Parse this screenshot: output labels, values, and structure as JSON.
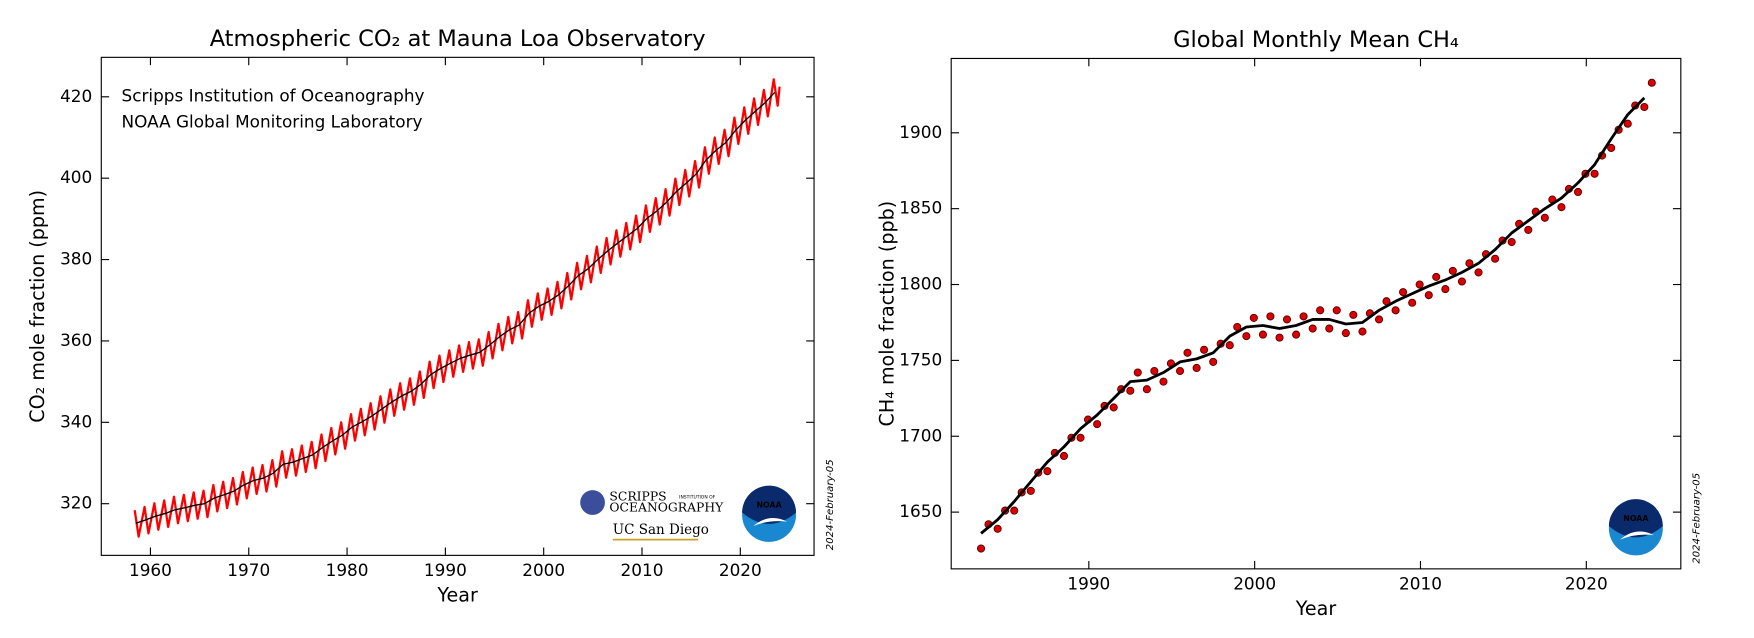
{
  "chart_data": [
    {
      "type": "line",
      "title": "Atmospheric CO₂ at Mauna Loa Observatory",
      "x_label": "Year",
      "y_label": "CO₂ mole fraction (ppm)",
      "annotations": [
        "Scripps Institution of Oceanography",
        "NOAA Global Monitoring Laboratory"
      ],
      "date_stamp": "2024-February-05",
      "logos": [
        "SCRIPPS",
        "INSTITUTION OF",
        "OCEANOGRAPHY",
        "UC San Diego",
        "NOAA"
      ],
      "xlim": [
        1955,
        2027.5
      ],
      "ylim": [
        307.3,
        429.7
      ],
      "xticks": [
        1960,
        1970,
        1980,
        1990,
        2000,
        2010,
        2020
      ],
      "yticks": [
        320,
        340,
        360,
        380,
        400,
        420
      ],
      "series": [
        {
          "color": "#ff0000",
          "line_width": 2,
          "x": [
            1958.4,
            1958.8,
            1959.4,
            1959.8,
            1960.4,
            1960.8,
            1961.4,
            1961.8,
            1962.4,
            1962.8,
            1963.4,
            1963.8,
            1964.4,
            1964.8,
            1965.4,
            1965.8,
            1966.4,
            1966.8,
            1967.4,
            1967.8,
            1968.4,
            1968.8,
            1969.4,
            1969.8,
            1970.4,
            1970.8,
            1971.4,
            1971.8,
            1972.4,
            1972.8,
            1973.4,
            1973.8,
            1974.4,
            1974.8,
            1975.4,
            1975.8,
            1976.4,
            1976.8,
            1977.4,
            1977.8,
            1978.4,
            1978.8,
            1979.4,
            1979.8,
            1980.4,
            1980.8,
            1981.4,
            1981.8,
            1982.4,
            1982.8,
            1983.4,
            1983.8,
            1984.4,
            1984.8,
            1985.4,
            1985.8,
            1986.4,
            1986.8,
            1987.4,
            1987.8,
            1988.4,
            1988.8,
            1989.4,
            1989.8,
            1990.4,
            1990.8,
            1991.4,
            1991.8,
            1992.4,
            1992.8,
            1993.4,
            1993.8,
            1994.4,
            1994.8,
            1995.4,
            1995.8,
            1996.4,
            1996.8,
            1997.4,
            1997.8,
            1998.4,
            1998.8,
            1999.4,
            1999.8,
            2000.4,
            2000.8,
            2001.4,
            2001.8,
            2002.4,
            2002.8,
            2003.4,
            2003.8,
            2004.4,
            2004.8,
            2005.4,
            2005.8,
            2006.4,
            2006.8,
            2007.4,
            2007.8,
            2008.4,
            2008.8,
            2009.4,
            2009.8,
            2010.4,
            2010.8,
            2011.4,
            2011.8,
            2012.4,
            2012.8,
            2013.4,
            2013.8,
            2014.4,
            2014.8,
            2015.4,
            2015.8,
            2016.4,
            2016.8,
            2017.4,
            2017.8,
            2018.4,
            2018.8,
            2019.4,
            2019.8,
            2020.4,
            2020.8,
            2021.4,
            2021.8,
            2022.4,
            2022.8,
            2023.4,
            2023.8,
            2024.0
          ],
          "values": [
            318.4,
            311.9,
            319.2,
            312.7,
            320.1,
            313.6,
            320.8,
            314.3,
            321.7,
            315.2,
            322.2,
            315.7,
            322.8,
            316.3,
            323.2,
            316.7,
            324.6,
            318.1,
            325.4,
            318.9,
            326.3,
            319.8,
            327.8,
            321.3,
            328.9,
            322.4,
            329.5,
            323.0,
            330.7,
            324.2,
            332.9,
            326.4,
            333.4,
            326.9,
            334.3,
            327.8,
            335.2,
            328.7,
            337.0,
            330.5,
            338.6,
            332.1,
            340.0,
            333.5,
            342.0,
            335.5,
            343.3,
            336.8,
            344.7,
            338.2,
            346.4,
            339.9,
            348.1,
            341.6,
            349.6,
            343.1,
            350.8,
            344.3,
            352.5,
            346.0,
            354.9,
            348.4,
            356.4,
            349.9,
            357.7,
            351.2,
            358.9,
            352.4,
            359.7,
            353.2,
            360.4,
            353.9,
            362.2,
            355.7,
            364.2,
            357.7,
            365.9,
            359.4,
            367.1,
            360.6,
            370.0,
            363.5,
            371.7,
            365.2,
            372.9,
            366.4,
            374.5,
            368.0,
            376.7,
            370.2,
            379.2,
            372.7,
            380.9,
            374.4,
            383.2,
            376.7,
            385.3,
            378.8,
            387.2,
            380.7,
            389.0,
            382.5,
            390.8,
            384.3,
            393.3,
            386.8,
            395.1,
            388.6,
            397.3,
            390.8,
            399.9,
            393.4,
            402.0,
            395.5,
            404.2,
            397.7,
            407.6,
            401.1,
            410.0,
            403.5,
            411.9,
            405.4,
            414.9,
            408.4,
            417.4,
            410.9,
            419.6,
            413.1,
            421.7,
            415.2,
            424.3,
            417.8,
            422.5
          ]
        },
        {
          "color": "#000000",
          "line_width": 1.2,
          "x": [
            1958.5,
            1959.5,
            1960.5,
            1961.5,
            1962.5,
            1963.5,
            1964.5,
            1965.5,
            1966.5,
            1967.5,
            1968.5,
            1969.5,
            1970.5,
            1971.5,
            1972.5,
            1973.5,
            1974.5,
            1975.5,
            1976.5,
            1977.5,
            1978.5,
            1979.5,
            1980.5,
            1981.5,
            1982.5,
            1983.5,
            1984.5,
            1985.5,
            1986.5,
            1987.5,
            1988.5,
            1989.5,
            1990.5,
            1991.5,
            1992.5,
            1993.5,
            1994.5,
            1995.5,
            1996.5,
            1997.5,
            1998.5,
            1999.5,
            2000.5,
            2001.5,
            2002.5,
            2003.5,
            2004.5,
            2005.5,
            2006.5,
            2007.5,
            2008.5,
            2009.5,
            2010.5,
            2011.5,
            2012.5,
            2013.5,
            2014.5,
            2015.5,
            2016.5,
            2017.5,
            2018.5,
            2019.5,
            2020.5,
            2021.5,
            2022.5,
            2023.5
          ],
          "values": [
            315.2,
            316.0,
            316.9,
            317.6,
            318.5,
            319.0,
            319.6,
            320.0,
            321.4,
            322.2,
            323.1,
            324.6,
            325.7,
            326.3,
            327.5,
            329.7,
            330.2,
            331.1,
            332.0,
            333.8,
            335.4,
            336.8,
            338.8,
            340.1,
            341.5,
            343.2,
            344.9,
            346.4,
            347.6,
            349.3,
            351.7,
            353.2,
            354.5,
            355.7,
            356.5,
            357.2,
            359.0,
            361.0,
            362.7,
            363.9,
            366.8,
            368.5,
            369.7,
            371.3,
            373.5,
            376.0,
            377.7,
            380.0,
            382.1,
            384.0,
            385.8,
            387.6,
            390.1,
            391.9,
            394.1,
            396.7,
            398.8,
            401.0,
            404.4,
            406.8,
            408.7,
            411.7,
            414.2,
            416.4,
            418.5,
            421.1
          ]
        }
      ]
    },
    {
      "type": "line",
      "title": "Global Monthly Mean CH₄",
      "x_label": "Year",
      "y_label": "CH₄ mole fraction (ppb)",
      "date_stamp": "2024-February-05",
      "logos": [
        "NOAA"
      ],
      "xlim": [
        1981.7,
        2025.7
      ],
      "ylim": [
        1612.6,
        1949
      ],
      "xticks": [
        1990,
        2000,
        2010,
        2020
      ],
      "yticks": [
        1650,
        1700,
        1750,
        1800,
        1850,
        1900
      ],
      "series": [
        {
          "color": "#dd0000",
          "marker": "o",
          "x": [
            1983.5,
            1983.95,
            1984.5,
            1984.95,
            1985.5,
            1985.95,
            1986.5,
            1986.95,
            1987.5,
            1987.95,
            1988.5,
            1988.95,
            1989.5,
            1989.95,
            1990.5,
            1990.95,
            1991.5,
            1991.95,
            1992.5,
            1992.95,
            1993.5,
            1993.95,
            1994.5,
            1994.95,
            1995.5,
            1995.95,
            1996.5,
            1996.95,
            1997.5,
            1997.95,
            1998.5,
            1998.95,
            1999.5,
            1999.95,
            2000.5,
            2000.95,
            2001.5,
            2001.95,
            2002.5,
            2002.95,
            2003.5,
            2003.95,
            2004.5,
            2004.95,
            2005.5,
            2005.95,
            2006.5,
            2006.95,
            2007.5,
            2007.95,
            2008.5,
            2008.95,
            2009.5,
            2009.95,
            2010.5,
            2010.95,
            2011.5,
            2011.95,
            2012.5,
            2012.95,
            2013.5,
            2013.95,
            2014.5,
            2014.95,
            2015.5,
            2015.95,
            2016.5,
            2016.95,
            2017.5,
            2017.95,
            2018.5,
            2018.95,
            2019.5,
            2019.95,
            2020.5,
            2020.95,
            2021.5,
            2021.95,
            2022.5,
            2022.95,
            2023.5,
            2023.95
          ],
          "values": [
            1626,
            1642,
            1639,
            1651,
            1651,
            1663,
            1664,
            1676,
            1677,
            1689,
            1687,
            1699,
            1699,
            1711,
            1708,
            1720,
            1719,
            1731,
            1730,
            1742,
            1731,
            1743,
            1736,
            1748,
            1743,
            1755,
            1745,
            1757,
            1749,
            1761,
            1760,
            1772,
            1766,
            1778,
            1767,
            1779,
            1765,
            1777,
            1767,
            1779,
            1771,
            1783,
            1771,
            1783,
            1768,
            1780,
            1769,
            1781,
            1777,
            1789,
            1783,
            1795,
            1788,
            1800,
            1793,
            1805,
            1797,
            1809,
            1802,
            1814,
            1808,
            1820,
            1817,
            1829,
            1828,
            1840,
            1836,
            1848,
            1844,
            1856,
            1851,
            1863,
            1861,
            1873,
            1873,
            1885,
            1890,
            1902,
            1906,
            1918,
            1917,
            1933
          ]
        },
        {
          "color": "#000000",
          "line_width": 2.5,
          "x": [
            1983.5,
            1984.5,
            1985.5,
            1986.5,
            1987.5,
            1988.5,
            1989.5,
            1990.5,
            1991.5,
            1992.5,
            1993.5,
            1994.5,
            1995.5,
            1996.5,
            1997.5,
            1998.5,
            1999.5,
            2000.5,
            2001.5,
            2002.5,
            2003.5,
            2004.5,
            2005.5,
            2006.5,
            2007.5,
            2008.5,
            2009.5,
            2010.5,
            2011.5,
            2012.5,
            2013.5,
            2014.5,
            2015.5,
            2016.5,
            2017.5,
            2018.5,
            2019.5,
            2020.5,
            2021.5,
            2022.5,
            2023.5
          ],
          "values": [
            1636,
            1645,
            1657,
            1670,
            1683,
            1693,
            1705,
            1714,
            1725,
            1736,
            1737,
            1742,
            1749,
            1751,
            1755,
            1766,
            1772,
            1773,
            1771,
            1773,
            1777,
            1777,
            1774,
            1775,
            1783,
            1789,
            1794,
            1799,
            1803,
            1808,
            1814,
            1823,
            1834,
            1842,
            1850,
            1857,
            1867,
            1879,
            1896,
            1912,
            1923
          ]
        }
      ]
    }
  ]
}
